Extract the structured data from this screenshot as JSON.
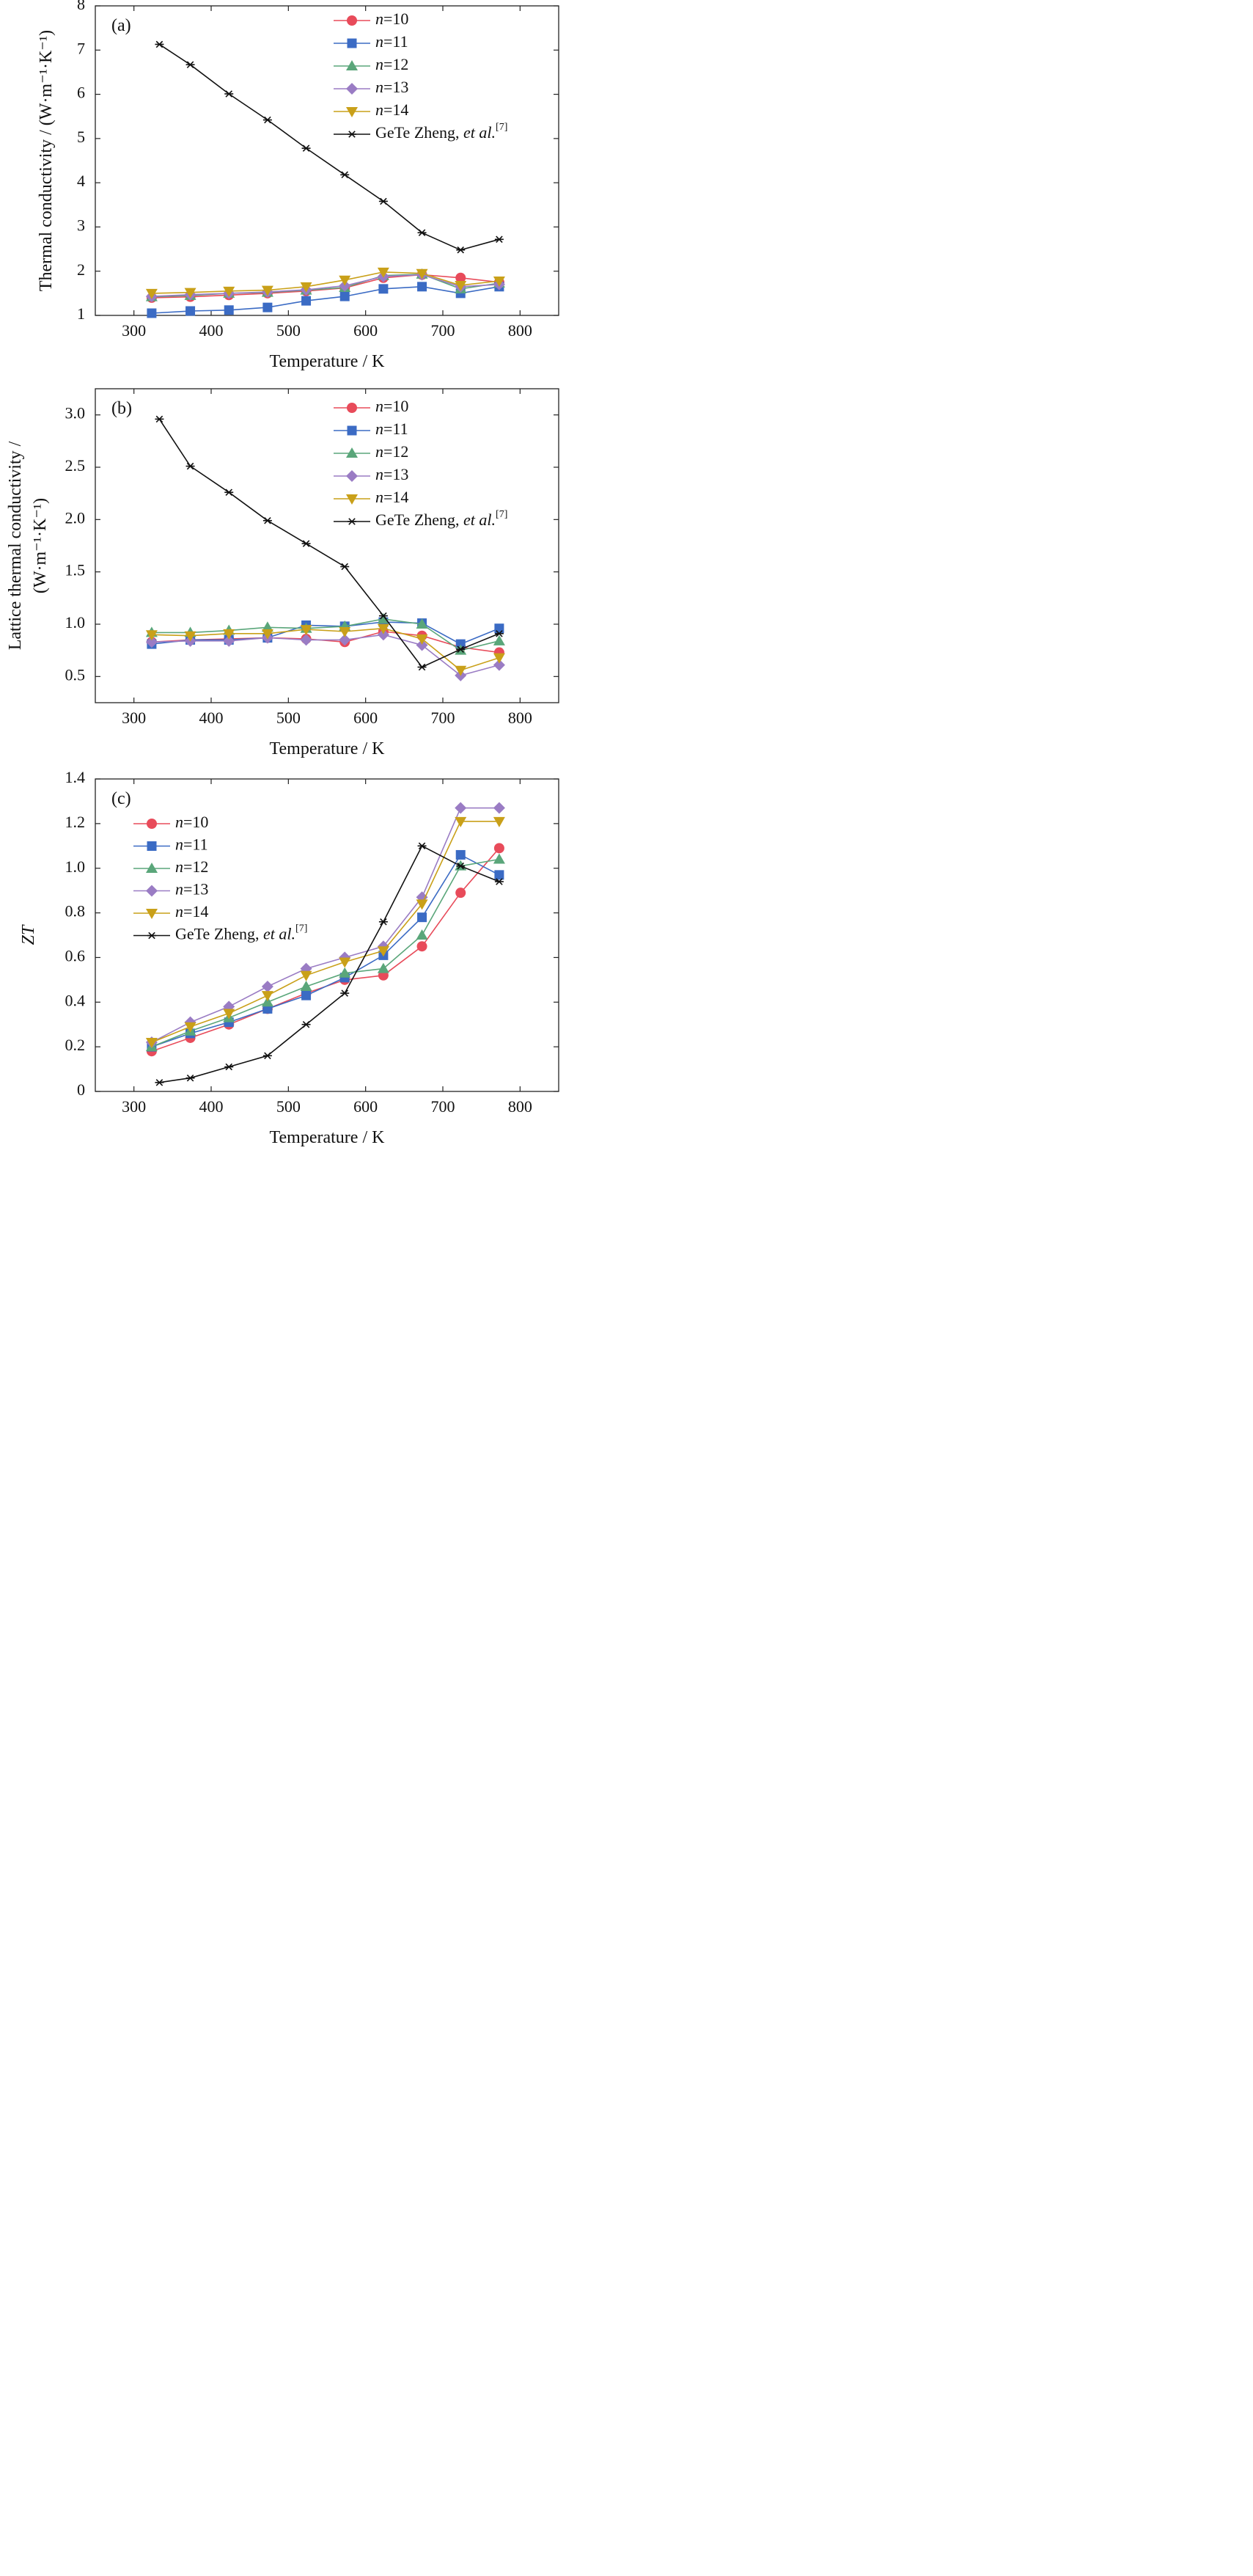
{
  "chart_data": [
    {
      "panel_label": "(a)",
      "type": "line",
      "xlabel": "Temperature / K",
      "ylabel": "Thermal conductivity / (W·m⁻¹·K⁻¹)",
      "ylabel_lines": [
        "Thermal conductivity / (W·m⁻¹·K⁻¹)"
      ],
      "xlim": [
        250,
        850
      ],
      "ylim": [
        1,
        8
      ],
      "xticks": [
        300,
        400,
        500,
        600,
        700,
        800
      ],
      "yticks": [
        1,
        2,
        3,
        4,
        5,
        6,
        7,
        8
      ],
      "ytick_labels": [
        "1",
        "2",
        "3",
        "4",
        "5",
        "6",
        "7",
        "8"
      ],
      "legend_position": "top-right",
      "series": [
        {
          "name": "n=10",
          "n": "10",
          "color": "#e84b5a",
          "marker": "circle",
          "x": [
            323,
            373,
            423,
            473,
            523,
            573,
            623,
            673,
            723,
            773
          ],
          "y": [
            1.4,
            1.42,
            1.46,
            1.5,
            1.55,
            1.62,
            1.85,
            1.92,
            1.85,
            1.75
          ]
        },
        {
          "name": "n=11",
          "n": "11",
          "color": "#3b6bc4",
          "marker": "square",
          "x": [
            323,
            373,
            423,
            473,
            523,
            573,
            623,
            673,
            723,
            773
          ],
          "y": [
            1.05,
            1.1,
            1.12,
            1.18,
            1.33,
            1.43,
            1.6,
            1.65,
            1.5,
            1.65
          ]
        },
        {
          "name": "n=12",
          "n": "12",
          "color": "#5aa67a",
          "marker": "triangle-up",
          "x": [
            323,
            373,
            423,
            473,
            523,
            573,
            623,
            673,
            723,
            773
          ],
          "y": [
            1.42,
            1.45,
            1.5,
            1.52,
            1.57,
            1.63,
            1.9,
            1.93,
            1.6,
            1.73
          ]
        },
        {
          "name": "n=13",
          "n": "13",
          "color": "#9a7cc4",
          "marker": "diamond",
          "x": [
            323,
            373,
            423,
            473,
            523,
            573,
            623,
            673,
            723,
            773
          ],
          "y": [
            1.43,
            1.47,
            1.5,
            1.53,
            1.58,
            1.67,
            1.88,
            1.92,
            1.65,
            1.7
          ]
        },
        {
          "name": "n=14",
          "n": "14",
          "color": "#c9a019",
          "marker": "triangle-down",
          "x": [
            323,
            373,
            423,
            473,
            523,
            573,
            623,
            673,
            723,
            773
          ],
          "y": [
            1.5,
            1.52,
            1.55,
            1.57,
            1.65,
            1.8,
            1.98,
            1.95,
            1.68,
            1.78
          ]
        },
        {
          "name": "GeTe Zheng, et al.[7]",
          "color": "#111111",
          "marker": "asterisk",
          "x": [
            333,
            373,
            423,
            473,
            523,
            573,
            623,
            673,
            723,
            773
          ],
          "y": [
            7.13,
            6.67,
            6.01,
            5.42,
            4.78,
            4.18,
            3.58,
            2.87,
            2.48,
            2.72
          ]
        }
      ]
    },
    {
      "panel_label": "(b)",
      "type": "line",
      "xlabel": "Temperature / K",
      "ylabel": "Lattice thermal conductivity / (W·m⁻¹·K⁻¹)",
      "ylabel_lines": [
        "Lattice thermal conductivity /",
        "(W·m⁻¹·K⁻¹)"
      ],
      "xlim": [
        250,
        850
      ],
      "ylim": [
        0.25,
        3.25
      ],
      "xticks": [
        300,
        400,
        500,
        600,
        700,
        800
      ],
      "yticks": [
        0.5,
        1.0,
        1.5,
        2.0,
        2.5,
        3.0
      ],
      "ytick_labels": [
        "0.5",
        "1.0",
        "1.5",
        "2.0",
        "2.5",
        "3.0"
      ],
      "legend_position": "top-right",
      "series": [
        {
          "name": "n=10",
          "n": "10",
          "color": "#e84b5a",
          "marker": "circle",
          "x": [
            323,
            373,
            423,
            473,
            523,
            573,
            623,
            673,
            723,
            773
          ],
          "y": [
            0.83,
            0.85,
            0.86,
            0.87,
            0.86,
            0.83,
            0.93,
            0.89,
            0.78,
            0.73
          ]
        },
        {
          "name": "n=11",
          "n": "11",
          "color": "#3b6bc4",
          "marker": "square",
          "x": [
            323,
            373,
            423,
            473,
            523,
            573,
            623,
            673,
            723,
            773
          ],
          "y": [
            0.81,
            0.85,
            0.85,
            0.87,
            0.99,
            0.98,
            1.02,
            1.01,
            0.81,
            0.96
          ]
        },
        {
          "name": "n=12",
          "n": "12",
          "color": "#5aa67a",
          "marker": "triangle-up",
          "x": [
            323,
            373,
            423,
            473,
            523,
            573,
            623,
            673,
            723,
            773
          ],
          "y": [
            0.92,
            0.92,
            0.94,
            0.97,
            0.96,
            0.98,
            1.05,
            1.0,
            0.75,
            0.84
          ]
        },
        {
          "name": "n=13",
          "n": "13",
          "color": "#9a7cc4",
          "marker": "diamond",
          "x": [
            323,
            373,
            423,
            473,
            523,
            573,
            623,
            673,
            723,
            773
          ],
          "y": [
            0.83,
            0.84,
            0.84,
            0.87,
            0.85,
            0.85,
            0.9,
            0.8,
            0.51,
            0.61
          ]
        },
        {
          "name": "n=14",
          "n": "14",
          "color": "#c9a019",
          "marker": "triangle-down",
          "x": [
            323,
            373,
            423,
            473,
            523,
            573,
            623,
            673,
            723,
            773
          ],
          "y": [
            0.9,
            0.89,
            0.91,
            0.91,
            0.95,
            0.93,
            0.96,
            0.86,
            0.56,
            0.68
          ]
        },
        {
          "name": "GeTe Zheng, et al.[7]",
          "color": "#111111",
          "marker": "asterisk",
          "x": [
            333,
            373,
            423,
            473,
            523,
            573,
            623,
            673,
            723,
            773
          ],
          "y": [
            2.96,
            2.51,
            2.26,
            1.99,
            1.77,
            1.55,
            1.08,
            0.59,
            0.76,
            0.91
          ]
        }
      ]
    },
    {
      "panel_label": "(c)",
      "type": "line",
      "xlabel": "Temperature / K",
      "ylabel": "ZT",
      "ylabel_lines": [
        "ZT"
      ],
      "ylabel_italic": true,
      "xlim": [
        250,
        850
      ],
      "ylim": [
        0,
        1.4
      ],
      "xticks": [
        300,
        400,
        500,
        600,
        700,
        800
      ],
      "yticks": [
        0,
        0.2,
        0.4,
        0.6,
        0.8,
        1.0,
        1.2,
        1.4
      ],
      "ytick_labels": [
        "0",
        "0.2",
        "0.4",
        "0.6",
        "0.8",
        "1.0",
        "1.2",
        "1.4"
      ],
      "legend_position": "top-left",
      "series": [
        {
          "name": "n=10",
          "n": "10",
          "color": "#e84b5a",
          "marker": "circle",
          "x": [
            323,
            373,
            423,
            473,
            523,
            573,
            623,
            673,
            723,
            773
          ],
          "y": [
            0.18,
            0.24,
            0.3,
            0.37,
            0.44,
            0.5,
            0.52,
            0.65,
            0.89,
            1.09
          ]
        },
        {
          "name": "n=11",
          "n": "11",
          "color": "#3b6bc4",
          "marker": "square",
          "x": [
            323,
            373,
            423,
            473,
            523,
            573,
            623,
            673,
            723,
            773
          ],
          "y": [
            0.2,
            0.26,
            0.31,
            0.37,
            0.43,
            0.51,
            0.61,
            0.78,
            1.06,
            0.97
          ]
        },
        {
          "name": "n=12",
          "n": "12",
          "color": "#5aa67a",
          "marker": "triangle-up",
          "x": [
            323,
            373,
            423,
            473,
            523,
            573,
            623,
            673,
            723,
            773
          ],
          "y": [
            0.2,
            0.27,
            0.33,
            0.4,
            0.47,
            0.53,
            0.55,
            0.7,
            1.01,
            1.04
          ]
        },
        {
          "name": "n=13",
          "n": "13",
          "color": "#9a7cc4",
          "marker": "diamond",
          "x": [
            323,
            373,
            423,
            473,
            523,
            573,
            623,
            673,
            723,
            773
          ],
          "y": [
            0.22,
            0.31,
            0.38,
            0.47,
            0.55,
            0.6,
            0.65,
            0.87,
            1.27,
            1.27
          ]
        },
        {
          "name": "n=14",
          "n": "14",
          "color": "#c9a019",
          "marker": "triangle-down",
          "x": [
            323,
            373,
            423,
            473,
            523,
            573,
            623,
            673,
            723,
            773
          ],
          "y": [
            0.22,
            0.29,
            0.35,
            0.43,
            0.52,
            0.58,
            0.63,
            0.84,
            1.21,
            1.21
          ]
        },
        {
          "name": "GeTe Zheng, et al.[7]",
          "color": "#111111",
          "marker": "asterisk",
          "x": [
            333,
            373,
            423,
            473,
            523,
            573,
            623,
            673,
            723,
            773
          ],
          "y": [
            0.04,
            0.06,
            0.11,
            0.16,
            0.3,
            0.44,
            0.76,
            1.1,
            1.01,
            0.94
          ]
        }
      ]
    }
  ]
}
